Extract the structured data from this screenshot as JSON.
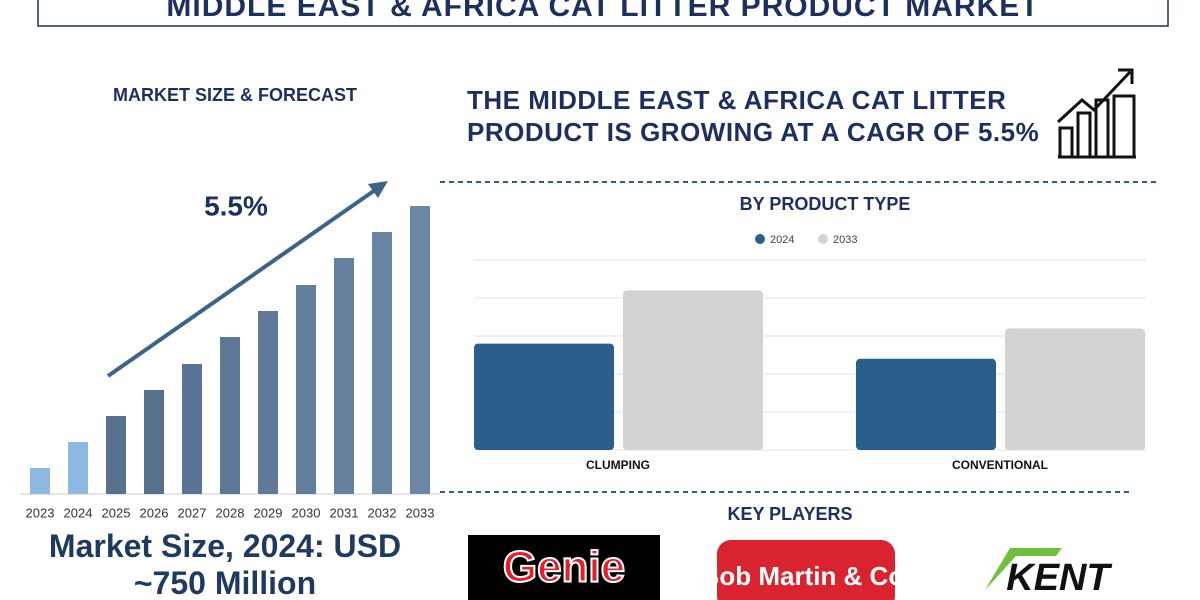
{
  "title": "MIDDLE EAST & AFRICA CAT LITTER PRODUCT MARKET",
  "headline": "THE MIDDLE EAST & AFRICA CAT LITTER PRODUCT IS GROWING AT A CAGR OF 5.5%",
  "market_size": "Market Size, 2024: USD ~750 Million",
  "key_players": {
    "title": "KEY PLAYERS",
    "names": [
      "Genie",
      "Bob Martin & Co.",
      "KENT"
    ]
  },
  "chart_data": [
    {
      "type": "bar",
      "title": "MARKET SIZE & FORECAST",
      "categories": [
        "2023",
        "2024",
        "2025",
        "2026",
        "2027",
        "2028",
        "2029",
        "2030",
        "2031",
        "2032",
        "2033"
      ],
      "values": [
        26,
        52,
        78,
        104,
        130,
        157,
        183,
        209,
        236,
        262,
        288
      ],
      "colors": [
        "#8db8e0",
        "#8db8e0",
        "#56708d",
        "#56708d",
        "#5a7593",
        "#5d7897",
        "#607b9a",
        "#637e9d",
        "#6581a0",
        "#6784a3",
        "#6a87a6"
      ],
      "ylim": [
        0,
        300
      ],
      "annotation": "5.5%"
    },
    {
      "type": "grouped-bar",
      "title": "BY PRODUCT TYPE",
      "categories": [
        "CLUMPING",
        "CONVENTIONAL"
      ],
      "series": [
        {
          "name": "2024",
          "color": "#2a5f8c",
          "values": [
            2.8,
            2.4
          ]
        },
        {
          "name": "2033",
          "color": "#d3d3d3",
          "values": [
            4.2,
            3.2
          ]
        }
      ],
      "ylim": [
        0,
        5
      ],
      "yticks": [
        0,
        1,
        2,
        3,
        4,
        5
      ],
      "grid": true
    }
  ]
}
